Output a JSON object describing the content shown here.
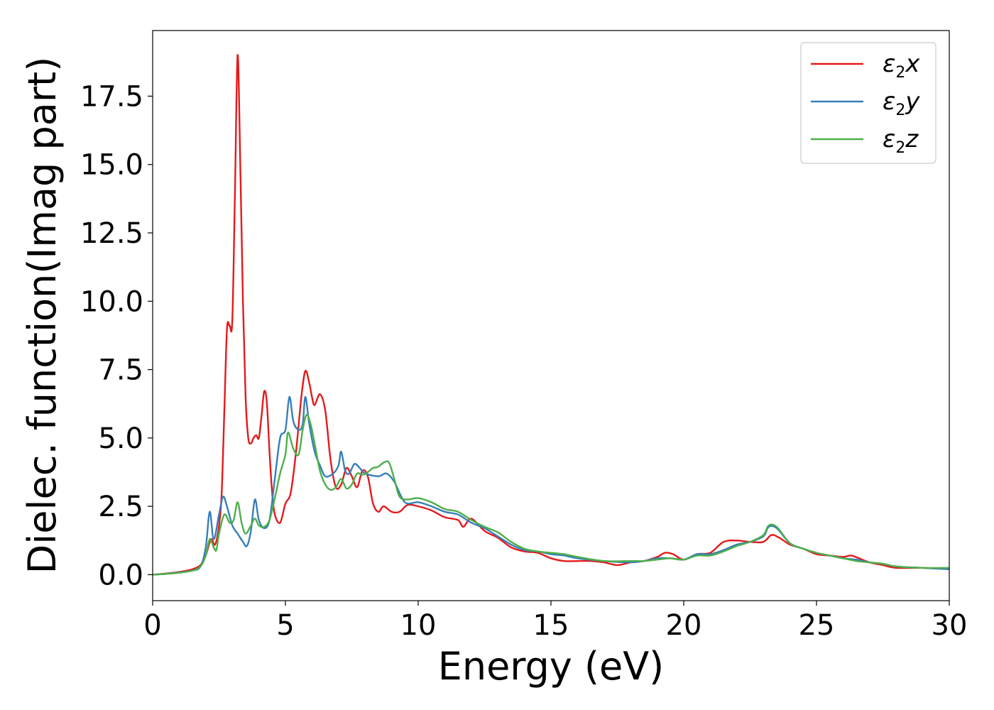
{
  "chart_data": {
    "type": "line",
    "title": "",
    "xlabel": "Energy (eV)",
    "ylabel": "Dielec. function(Imag part)",
    "xlim": [
      0,
      30
    ],
    "ylim": [
      -0.95,
      19.9
    ],
    "xticks": [
      0,
      5,
      10,
      15,
      20,
      25,
      30
    ],
    "xtick_labels": [
      "0",
      "5",
      "10",
      "15",
      "20",
      "25",
      "30"
    ],
    "yticks": [
      0,
      2.5,
      5,
      7.5,
      10,
      12.5,
      15,
      17.5
    ],
    "ytick_labels": [
      "0.0",
      "2.5",
      "5.0",
      "7.5",
      "10.0",
      "12.5",
      "15.0",
      "17.5"
    ],
    "grid": false,
    "legend": "upper right",
    "series": [
      {
        "name": "ε2x",
        "label_main": "ε",
        "label_sub": "2",
        "label_tail": "x",
        "color": "#e41a1c",
        "points": [
          [
            0,
            0
          ],
          [
            0.5,
            0.04
          ],
          [
            1.0,
            0.1
          ],
          [
            1.5,
            0.2
          ],
          [
            1.8,
            0.35
          ],
          [
            2.0,
            0.7
          ],
          [
            2.2,
            1.3
          ],
          [
            2.35,
            1.1
          ],
          [
            2.5,
            1.8
          ],
          [
            2.6,
            3.0
          ],
          [
            2.7,
            6.0
          ],
          [
            2.8,
            9.0
          ],
          [
            2.9,
            9.1
          ],
          [
            3.0,
            9.3
          ],
          [
            3.1,
            14.0
          ],
          [
            3.2,
            19.0
          ],
          [
            3.3,
            15.0
          ],
          [
            3.4,
            10.0
          ],
          [
            3.5,
            6.5
          ],
          [
            3.6,
            5.0
          ],
          [
            3.7,
            4.8
          ],
          [
            3.8,
            5.0
          ],
          [
            3.9,
            5.1
          ],
          [
            4.0,
            5.0
          ],
          [
            4.1,
            5.8
          ],
          [
            4.2,
            6.7
          ],
          [
            4.3,
            6.3
          ],
          [
            4.4,
            4.5
          ],
          [
            4.5,
            3.0
          ],
          [
            4.6,
            2.2
          ],
          [
            4.8,
            1.9
          ],
          [
            5.0,
            2.6
          ],
          [
            5.2,
            3.0
          ],
          [
            5.4,
            4.5
          ],
          [
            5.6,
            6.5
          ],
          [
            5.75,
            7.45
          ],
          [
            5.9,
            7.0
          ],
          [
            6.0,
            6.5
          ],
          [
            6.1,
            6.2
          ],
          [
            6.3,
            6.6
          ],
          [
            6.5,
            6.0
          ],
          [
            6.7,
            4.2
          ],
          [
            6.9,
            3.2
          ],
          [
            7.1,
            3.3
          ],
          [
            7.3,
            3.9
          ],
          [
            7.5,
            3.6
          ],
          [
            7.7,
            3.2
          ],
          [
            7.9,
            3.8
          ],
          [
            8.1,
            3.6
          ],
          [
            8.3,
            2.6
          ],
          [
            8.5,
            2.3
          ],
          [
            8.7,
            2.5
          ],
          [
            9.0,
            2.3
          ],
          [
            9.3,
            2.3
          ],
          [
            9.6,
            2.55
          ],
          [
            10.0,
            2.5
          ],
          [
            10.5,
            2.35
          ],
          [
            11.0,
            2.1
          ],
          [
            11.5,
            2.0
          ],
          [
            11.7,
            1.75
          ],
          [
            12.0,
            2.05
          ],
          [
            12.5,
            1.6
          ],
          [
            13.0,
            1.35
          ],
          [
            13.5,
            1.0
          ],
          [
            14.0,
            0.85
          ],
          [
            14.5,
            0.8
          ],
          [
            15.0,
            0.6
          ],
          [
            15.5,
            0.5
          ],
          [
            16.0,
            0.5
          ],
          [
            16.5,
            0.5
          ],
          [
            17.0,
            0.45
          ],
          [
            17.5,
            0.35
          ],
          [
            18.0,
            0.45
          ],
          [
            18.5,
            0.5
          ],
          [
            19.0,
            0.65
          ],
          [
            19.3,
            0.8
          ],
          [
            19.6,
            0.75
          ],
          [
            20.0,
            0.55
          ],
          [
            20.5,
            0.75
          ],
          [
            21.0,
            0.8
          ],
          [
            21.5,
            1.2
          ],
          [
            22.0,
            1.25
          ],
          [
            22.5,
            1.2
          ],
          [
            23.0,
            1.2
          ],
          [
            23.3,
            1.45
          ],
          [
            23.6,
            1.35
          ],
          [
            24.0,
            1.1
          ],
          [
            24.5,
            0.95
          ],
          [
            25.0,
            0.75
          ],
          [
            25.5,
            0.7
          ],
          [
            26.0,
            0.65
          ],
          [
            26.3,
            0.7
          ],
          [
            26.6,
            0.6
          ],
          [
            27.0,
            0.45
          ],
          [
            27.5,
            0.35
          ],
          [
            28.0,
            0.25
          ],
          [
            29.0,
            0.25
          ],
          [
            30.0,
            0.2
          ]
        ]
      },
      {
        "name": "ε2y",
        "label_main": "ε",
        "label_sub": "2",
        "label_tail": "y",
        "color": "#377eb8",
        "points": [
          [
            0,
            0
          ],
          [
            0.5,
            0.03
          ],
          [
            1.0,
            0.08
          ],
          [
            1.5,
            0.15
          ],
          [
            1.8,
            0.3
          ],
          [
            2.0,
            1.0
          ],
          [
            2.15,
            2.3
          ],
          [
            2.3,
            1.3
          ],
          [
            2.5,
            2.2
          ],
          [
            2.65,
            2.85
          ],
          [
            2.8,
            2.5
          ],
          [
            3.0,
            1.8
          ],
          [
            3.2,
            1.5
          ],
          [
            3.4,
            1.2
          ],
          [
            3.55,
            1.05
          ],
          [
            3.7,
            1.6
          ],
          [
            3.85,
            2.75
          ],
          [
            4.0,
            2.0
          ],
          [
            4.2,
            1.7
          ],
          [
            4.4,
            2.0
          ],
          [
            4.6,
            3.5
          ],
          [
            4.8,
            5.0
          ],
          [
            5.0,
            5.3
          ],
          [
            5.15,
            6.5
          ],
          [
            5.3,
            5.6
          ],
          [
            5.5,
            5.3
          ],
          [
            5.65,
            5.5
          ],
          [
            5.75,
            6.5
          ],
          [
            5.9,
            5.5
          ],
          [
            6.1,
            4.5
          ],
          [
            6.3,
            4.0
          ],
          [
            6.5,
            3.6
          ],
          [
            6.8,
            3.7
          ],
          [
            7.0,
            4.0
          ],
          [
            7.1,
            4.5
          ],
          [
            7.25,
            3.8
          ],
          [
            7.4,
            3.7
          ],
          [
            7.6,
            4.05
          ],
          [
            7.8,
            3.9
          ],
          [
            8.0,
            3.7
          ],
          [
            8.5,
            3.6
          ],
          [
            8.8,
            3.7
          ],
          [
            9.1,
            3.4
          ],
          [
            9.5,
            2.65
          ],
          [
            10.0,
            2.65
          ],
          [
            10.5,
            2.5
          ],
          [
            11.0,
            2.3
          ],
          [
            11.5,
            2.2
          ],
          [
            12.0,
            1.9
          ],
          [
            12.5,
            1.7
          ],
          [
            13.0,
            1.4
          ],
          [
            13.5,
            1.1
          ],
          [
            14.0,
            0.9
          ],
          [
            14.5,
            0.85
          ],
          [
            15.0,
            0.75
          ],
          [
            15.5,
            0.7
          ],
          [
            16.0,
            0.6
          ],
          [
            17.0,
            0.5
          ],
          [
            18.0,
            0.45
          ],
          [
            18.5,
            0.5
          ],
          [
            19.0,
            0.6
          ],
          [
            19.5,
            0.6
          ],
          [
            20.0,
            0.55
          ],
          [
            20.5,
            0.75
          ],
          [
            21.0,
            0.75
          ],
          [
            21.5,
            0.9
          ],
          [
            22.0,
            1.1
          ],
          [
            22.5,
            1.2
          ],
          [
            23.0,
            1.4
          ],
          [
            23.2,
            1.75
          ],
          [
            23.5,
            1.7
          ],
          [
            24.0,
            1.15
          ],
          [
            24.5,
            0.95
          ],
          [
            25.0,
            0.8
          ],
          [
            25.5,
            0.7
          ],
          [
            26.0,
            0.6
          ],
          [
            26.5,
            0.55
          ],
          [
            27.0,
            0.45
          ],
          [
            27.5,
            0.4
          ],
          [
            28.0,
            0.3
          ],
          [
            29.0,
            0.25
          ],
          [
            30.0,
            0.2
          ]
        ]
      },
      {
        "name": "ε2z",
        "label_main": "ε",
        "label_sub": "2",
        "label_tail": "z",
        "color": "#4daf4a",
        "points": [
          [
            0,
            0
          ],
          [
            0.5,
            0.03
          ],
          [
            1.0,
            0.07
          ],
          [
            1.5,
            0.15
          ],
          [
            1.8,
            0.3
          ],
          [
            2.0,
            0.7
          ],
          [
            2.15,
            1.3
          ],
          [
            2.3,
            1.0
          ],
          [
            2.4,
            0.9
          ],
          [
            2.5,
            1.5
          ],
          [
            2.7,
            2.2
          ],
          [
            2.9,
            1.9
          ],
          [
            3.05,
            2.0
          ],
          [
            3.2,
            2.65
          ],
          [
            3.35,
            1.9
          ],
          [
            3.5,
            1.5
          ],
          [
            3.7,
            1.8
          ],
          [
            3.85,
            2.05
          ],
          [
            4.0,
            1.8
          ],
          [
            4.2,
            1.75
          ],
          [
            4.4,
            2.0
          ],
          [
            4.6,
            2.8
          ],
          [
            4.8,
            3.7
          ],
          [
            5.0,
            4.4
          ],
          [
            5.1,
            5.2
          ],
          [
            5.3,
            4.6
          ],
          [
            5.5,
            4.4
          ],
          [
            5.65,
            5.3
          ],
          [
            5.8,
            5.85
          ],
          [
            5.95,
            5.5
          ],
          [
            6.1,
            4.8
          ],
          [
            6.3,
            3.8
          ],
          [
            6.5,
            3.3
          ],
          [
            6.7,
            3.1
          ],
          [
            6.9,
            3.2
          ],
          [
            7.1,
            3.5
          ],
          [
            7.3,
            3.15
          ],
          [
            7.5,
            3.3
          ],
          [
            7.7,
            3.7
          ],
          [
            7.9,
            3.65
          ],
          [
            8.1,
            3.75
          ],
          [
            8.3,
            3.9
          ],
          [
            8.5,
            3.95
          ],
          [
            8.7,
            4.1
          ],
          [
            8.9,
            4.1
          ],
          [
            9.1,
            3.5
          ],
          [
            9.3,
            2.85
          ],
          [
            9.6,
            2.75
          ],
          [
            10.0,
            2.8
          ],
          [
            10.5,
            2.65
          ],
          [
            11.0,
            2.4
          ],
          [
            11.5,
            2.3
          ],
          [
            12.0,
            2.0
          ],
          [
            12.5,
            1.75
          ],
          [
            13.0,
            1.55
          ],
          [
            13.5,
            1.2
          ],
          [
            14.0,
            0.95
          ],
          [
            14.5,
            0.85
          ],
          [
            15.0,
            0.8
          ],
          [
            15.5,
            0.75
          ],
          [
            16.0,
            0.65
          ],
          [
            17.0,
            0.5
          ],
          [
            18.0,
            0.5
          ],
          [
            18.5,
            0.5
          ],
          [
            19.0,
            0.55
          ],
          [
            19.5,
            0.6
          ],
          [
            20.0,
            0.55
          ],
          [
            20.5,
            0.7
          ],
          [
            21.0,
            0.7
          ],
          [
            21.5,
            0.85
          ],
          [
            22.0,
            1.05
          ],
          [
            22.5,
            1.2
          ],
          [
            23.0,
            1.45
          ],
          [
            23.2,
            1.8
          ],
          [
            23.5,
            1.75
          ],
          [
            24.0,
            1.15
          ],
          [
            24.5,
            0.95
          ],
          [
            25.0,
            0.8
          ],
          [
            25.5,
            0.7
          ],
          [
            26.0,
            0.6
          ],
          [
            26.5,
            0.5
          ],
          [
            27.0,
            0.45
          ],
          [
            27.5,
            0.4
          ],
          [
            28.0,
            0.3
          ],
          [
            29.0,
            0.25
          ],
          [
            30.0,
            0.25
          ]
        ]
      }
    ]
  }
}
